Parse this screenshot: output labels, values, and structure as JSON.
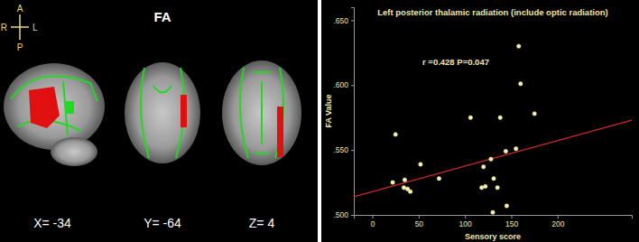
{
  "chart_data": {
    "type": "scatter",
    "title": "Left posterior thalamic radiation (include optic radiation)",
    "annotations": [
      "r =0.428 P=0.047"
    ],
    "x_label": "Sensory score",
    "y_label": "FA Value",
    "xlim": [
      -20,
      280
    ],
    "xticks": [
      0,
      50,
      100,
      150,
      200
    ],
    "ylim": [
      0.5,
      0.66
    ],
    "yticks": [
      {
        "value": 0.5,
        "label": ".500"
      },
      {
        "value": 0.55,
        "label": ".550"
      },
      {
        "value": 0.6,
        "label": ".600"
      },
      {
        "value": 0.65,
        "label": ".650"
      }
    ],
    "series": [
      {
        "type": "scatter",
        "color": "#f5efb0",
        "marker": "circle",
        "x": [
          22,
          25,
          34,
          35,
          38,
          41,
          52,
          72,
          106,
          118,
          120,
          122,
          128,
          130,
          131,
          135,
          138,
          144,
          145,
          155,
          158,
          160,
          175
        ],
        "values": [
          0.525,
          0.562,
          0.521,
          0.527,
          0.52,
          0.518,
          0.539,
          0.528,
          0.575,
          0.521,
          0.537,
          0.522,
          0.543,
          0.502,
          0.528,
          0.521,
          0.575,
          0.549,
          0.507,
          0.551,
          0.63,
          0.601,
          0.578
        ]
      },
      {
        "type": "line",
        "color": "#d42a2a",
        "line_style": "solid",
        "x": [
          -20,
          280
        ],
        "values": [
          0.514,
          0.573
        ]
      }
    ]
  },
  "brain_panel": {
    "title": "FA",
    "orientation": {
      "anterior": "A",
      "posterior": "P",
      "right": "R",
      "left": "L"
    },
    "slices": [
      "X= -34",
      "Y= -64",
      "Z= 4"
    ]
  }
}
